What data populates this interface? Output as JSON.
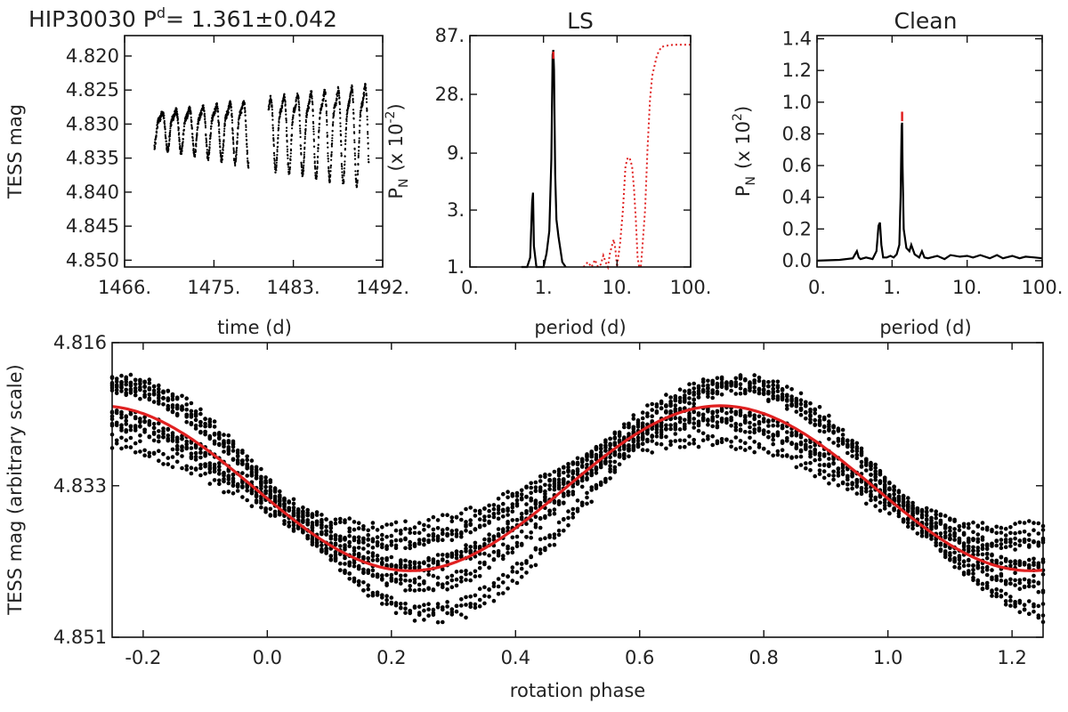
{
  "figure": {
    "title_main": "HIP30030  P",
    "title_sup": "d",
    "title_value": "=  1.361±0.042"
  },
  "chart_data": [
    {
      "panel": "lightcurve",
      "type": "scatter",
      "title": "",
      "xlabel": "time (d)",
      "ylabel": "TESS mag",
      "xlim": [
        1466,
        1492
      ],
      "ylim": [
        4.851,
        4.817
      ],
      "inverted_y": true,
      "xticks": [
        1466,
        1475,
        1483,
        1492
      ],
      "xtick_labels": [
        "1466.",
        "1475.",
        "1483.",
        "1492."
      ],
      "yticks": [
        4.82,
        4.825,
        4.83,
        4.835,
        4.84,
        4.845,
        4.85
      ],
      "ytick_labels": [
        "4.820",
        "4.825",
        "4.830",
        "4.835",
        "4.840",
        "4.845",
        "4.850"
      ],
      "segments": [
        [
          1469.0,
          1478.5
        ],
        [
          1480.5,
          1490.6
        ]
      ],
      "period": 1.361,
      "mean_mag": 4.8305,
      "amplitude_start": 0.0045,
      "amplitude_end": 0.0135,
      "grid": false
    },
    {
      "panel": "ls",
      "type": "line",
      "title": "LS",
      "xlabel": "period (d)",
      "ylabel": "P",
      "ylabel_sub": "N",
      "ylabel_tail": "(x 10",
      "ylabel_sup": "-2",
      "ylabel_end": ")",
      "xscale": "log",
      "yscale": "log",
      "xlim": [
        0.1,
        100
      ],
      "ylim": [
        1,
        87
      ],
      "xticks": [
        0.1,
        1,
        10,
        100
      ],
      "xtick_labels": [
        "0.",
        "1.",
        "10.",
        "100."
      ],
      "yticks": [
        1,
        3,
        9,
        28,
        87
      ],
      "ytick_labels": [
        "1.",
        "3.",
        "9.",
        "28.",
        "87."
      ],
      "series": [
        {
          "color": "#000000",
          "style": "solid",
          "x": [
            0.5,
            0.6,
            0.66,
            0.7,
            0.72,
            0.74,
            0.8,
            0.9,
            1.0,
            1.1,
            1.2,
            1.28,
            1.33,
            1.36,
            1.39,
            1.44,
            1.5,
            1.6,
            1.7,
            1.8,
            2.0
          ],
          "y": [
            1,
            1,
            1.2,
            3.5,
            4.2,
            1.5,
            1,
            1,
            1,
            1.3,
            2.0,
            8.0,
            60.0,
            66.0,
            45.0,
            6.0,
            2.5,
            1.8,
            1.4,
            1.1,
            1
          ]
        },
        {
          "color": "#e02020",
          "style": "dotted",
          "x": [
            3.5,
            4.0,
            4.5,
            5.0,
            5.5,
            6.0,
            6.5,
            7.0,
            7.5,
            8.0,
            8.5,
            9.0,
            9.5,
            10.0,
            11.0,
            12.0,
            13.0,
            14.0,
            15.0,
            16.0,
            17.0,
            18.0,
            19.0,
            20.0,
            21.0,
            22.0,
            24.0,
            26.0,
            28.0,
            30.0,
            35.0,
            40.0,
            50.0,
            60.0,
            70.0,
            80.0,
            90.0,
            100.0
          ],
          "y": [
            1,
            1.1,
            1.0,
            1.15,
            1.0,
            1.05,
            1.25,
            1.1,
            1.0,
            1.3,
            1.5,
            1.7,
            1.4,
            1.0,
            1.6,
            3.0,
            7.0,
            8.3,
            8.0,
            7.0,
            4.5,
            2.5,
            1.2,
            1.0,
            1.0,
            1.4,
            3.0,
            10.0,
            25.0,
            40.0,
            60.0,
            70.0,
            72.0,
            73.0,
            73.0,
            73.0,
            73.0,
            73.0
          ]
        }
      ],
      "peak_marker": {
        "x": 1.36,
        "color": "#e02020"
      },
      "grid": false
    },
    {
      "panel": "clean",
      "type": "line",
      "title": "Clean",
      "xlabel": "period (d)",
      "ylabel": "P",
      "ylabel_sub": "N",
      "ylabel_tail": "(x 10",
      "ylabel_sup": "2",
      "ylabel_end": ")",
      "xscale": "log",
      "xlim": [
        0.1,
        100
      ],
      "ylim": [
        -0.04,
        1.42
      ],
      "xticks": [
        0.1,
        1,
        10,
        100
      ],
      "xtick_labels": [
        "0.",
        "1.",
        "10.",
        "100."
      ],
      "yticks": [
        0.0,
        0.2,
        0.4,
        0.6,
        0.8,
        1.0,
        1.2,
        1.4
      ],
      "ytick_labels": [
        "0.0",
        "0.2",
        "0.4",
        "0.6",
        "0.8",
        "1.0",
        "1.2",
        "1.4"
      ],
      "series": [
        {
          "color": "#000000",
          "style": "solid",
          "x": [
            0.1,
            0.2,
            0.3,
            0.34,
            0.36,
            0.38,
            0.45,
            0.55,
            0.62,
            0.66,
            0.69,
            0.72,
            0.76,
            0.85,
            0.95,
            1.05,
            1.15,
            1.25,
            1.3,
            1.34,
            1.36,
            1.38,
            1.43,
            1.55,
            1.7,
            1.8,
            2.0,
            2.3,
            2.5,
            2.7,
            3.0,
            4.0,
            5.0,
            6.0,
            8.0,
            10.0,
            12.0,
            15.0,
            20.0,
            25.0,
            30.0,
            40.0,
            50.0,
            60.0,
            80.0,
            100.0
          ],
          "y": [
            0,
            0.005,
            0.015,
            0.06,
            0.02,
            0.01,
            0.02,
            0.01,
            0.06,
            0.22,
            0.24,
            0.1,
            0.02,
            0.02,
            0.03,
            0.02,
            0.04,
            0.1,
            0.4,
            0.85,
            0.87,
            0.6,
            0.2,
            0.08,
            0.06,
            0.1,
            0.04,
            0.02,
            0.06,
            0.02,
            0.015,
            0.03,
            0.01,
            0.035,
            0.025,
            0.03,
            0.02,
            0.035,
            0.015,
            0.035,
            0.015,
            0.03,
            0.015,
            0.025,
            0.02,
            0.015
          ]
        }
      ],
      "peak_marker": {
        "x": 1.36,
        "color": "#e02020"
      },
      "grid": false
    },
    {
      "panel": "phase",
      "type": "scatter",
      "title": "",
      "xlabel": "rotation phase",
      "ylabel": "TESS mag (arbitrary scale)",
      "xlim": [
        -0.25,
        1.25
      ],
      "ylim": [
        4.851,
        4.816
      ],
      "inverted_y": true,
      "xticks": [
        -0.2,
        0.0,
        0.2,
        0.4,
        0.6,
        0.8,
        1.0,
        1.2
      ],
      "xtick_labels": [
        "-0.2",
        "0.0",
        "0.2",
        "0.4",
        "0.6",
        "0.8",
        "1.0",
        "1.2"
      ],
      "yticks": [
        4.816,
        4.833,
        4.851
      ],
      "ytick_labels": [
        "4.816",
        "4.833",
        "4.851"
      ],
      "fit": {
        "color": "#e02020",
        "mean": 4.8333,
        "amplitude": 0.0098,
        "phase_of_minimum_brightness": 0.23
      },
      "grid": false
    }
  ]
}
